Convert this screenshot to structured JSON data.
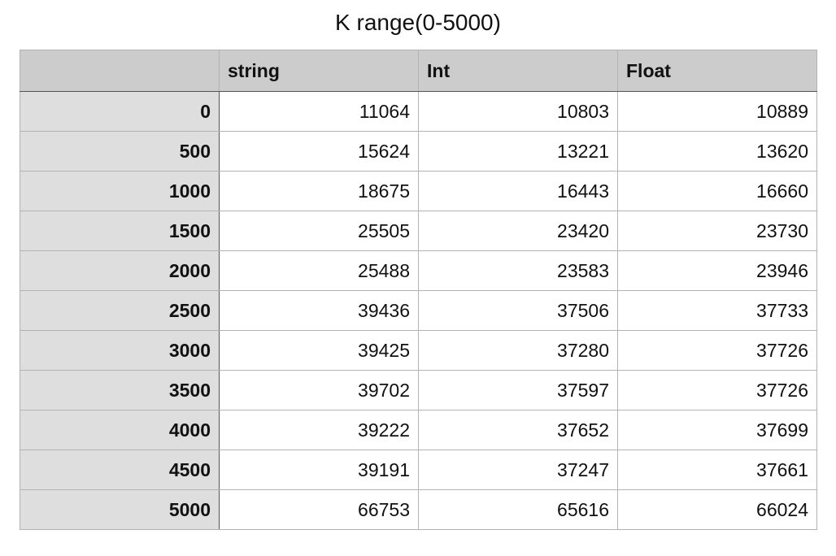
{
  "chart_data": {
    "type": "table",
    "title": "K range(0-5000)",
    "corner": "",
    "columns": [
      "string",
      "Int",
      "Float"
    ],
    "rows": [
      {
        "label": "0",
        "values": [
          11064,
          10803,
          10889
        ]
      },
      {
        "label": "500",
        "values": [
          15624,
          13221,
          13620
        ]
      },
      {
        "label": "1000",
        "values": [
          18675,
          16443,
          16660
        ]
      },
      {
        "label": "1500",
        "values": [
          25505,
          23420,
          23730
        ]
      },
      {
        "label": "2000",
        "values": [
          25488,
          23583,
          23946
        ]
      },
      {
        "label": "2500",
        "values": [
          39436,
          37506,
          37733
        ]
      },
      {
        "label": "3000",
        "values": [
          39425,
          37280,
          37726
        ]
      },
      {
        "label": "3500",
        "values": [
          39702,
          37597,
          37726
        ]
      },
      {
        "label": "4000",
        "values": [
          39222,
          37652,
          37699
        ]
      },
      {
        "label": "4500",
        "values": [
          39191,
          37247,
          37661
        ]
      },
      {
        "label": "5000",
        "values": [
          66753,
          65616,
          66024
        ]
      }
    ],
    "colors": {
      "header_bg": "#cccccc",
      "row_header_bg": "#dedede",
      "cell_bg": "#ffffff",
      "grid_line": "#b3b3b3"
    }
  }
}
